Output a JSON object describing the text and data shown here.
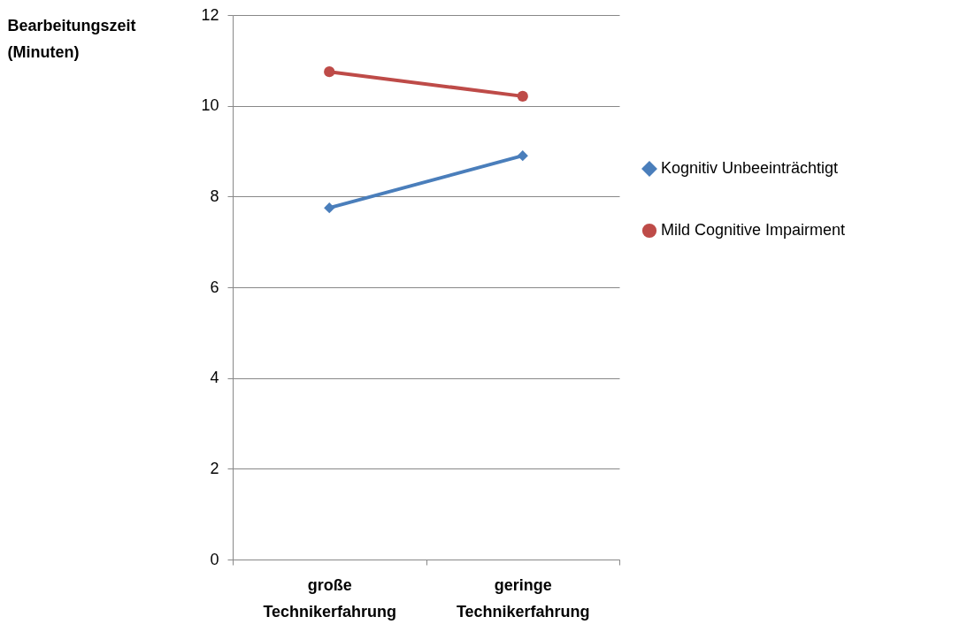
{
  "chart_data": {
    "type": "line",
    "ylabel": "Bearbeitungszeit (Minuten)",
    "categories": [
      "große Technikerfahrung",
      "geringe Technikerfahrung"
    ],
    "series": [
      {
        "name": "Kognitiv Unbeeinträchtigt",
        "color": "#4a7ebb",
        "marker": "diamond",
        "values": [
          7.75,
          8.9
        ]
      },
      {
        "name": "Mild Cognitive Impairment",
        "color": "#be4b48",
        "marker": "circle",
        "values": [
          10.75,
          10.21
        ]
      }
    ],
    "ylim": [
      0,
      12
    ],
    "yticks": [
      0,
      2,
      4,
      6,
      8,
      10,
      12
    ],
    "grid": "y",
    "legend": "right"
  }
}
